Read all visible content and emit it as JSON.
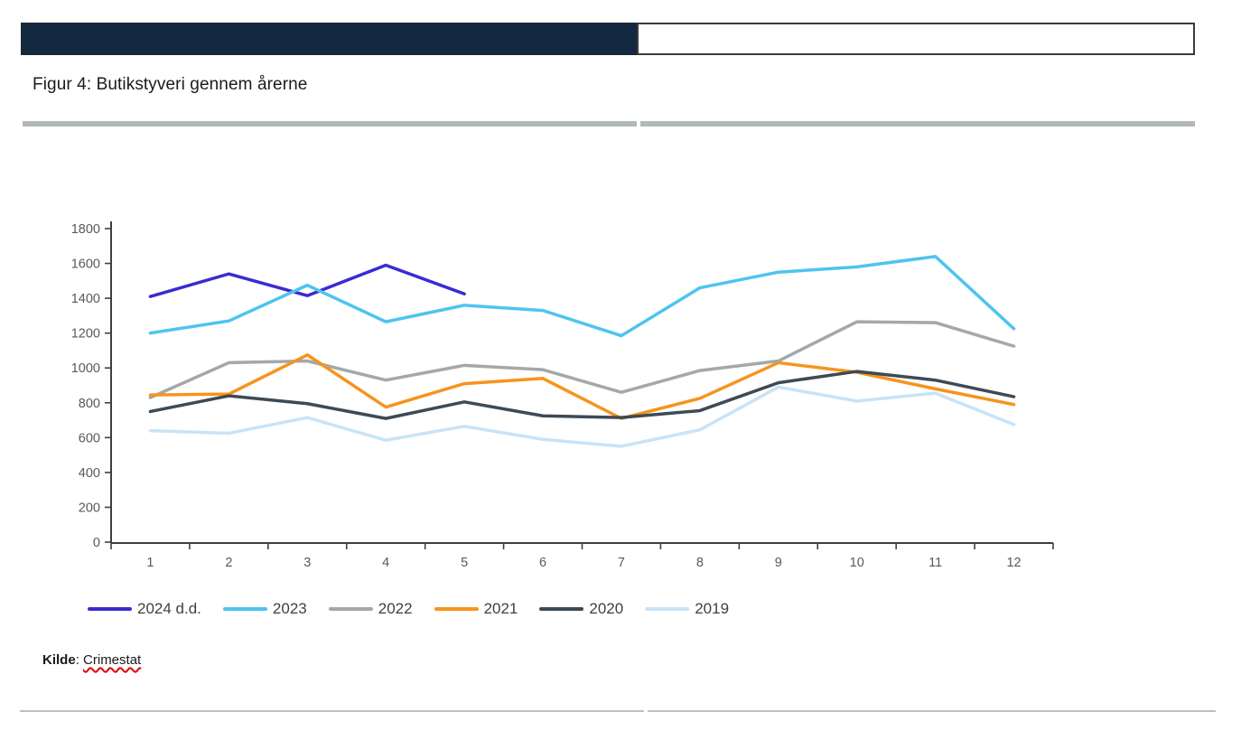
{
  "header": {
    "dark_cell_text": "",
    "light_cell_text": ""
  },
  "figure": {
    "title": "Figur 4: Butikstyveri gennem årerne"
  },
  "source": {
    "label": "Kilde",
    "separator": ": ",
    "value": "Crimestat"
  },
  "chart_data": {
    "type": "line",
    "title": "",
    "xlabel": "",
    "ylabel": "",
    "categories": [
      "1",
      "2",
      "3",
      "4",
      "5",
      "6",
      "7",
      "8",
      "9",
      "10",
      "11",
      "12"
    ],
    "ylim": [
      0,
      1800
    ],
    "ytick_step": 200,
    "grid": false,
    "legend_position": "bottom",
    "axis_color": "#3f3f3f",
    "tick_label_color": "#595959",
    "series": [
      {
        "name": "2024 d.d.",
        "color": "#3a2bd2",
        "values": [
          1410,
          1540,
          1415,
          1590,
          1425
        ]
      },
      {
        "name": "2023",
        "color": "#4ec4ef",
        "values": [
          1200,
          1270,
          1475,
          1265,
          1360,
          1330,
          1185,
          1460,
          1550,
          1580,
          1640,
          1225
        ]
      },
      {
        "name": "2022",
        "color": "#a3a8ab",
        "values": [
          830,
          1030,
          1040,
          930,
          1015,
          990,
          860,
          985,
          1040,
          1265,
          1260,
          1125
        ]
      },
      {
        "name": "2021",
        "color": "#f6941d",
        "values": [
          845,
          850,
          1075,
          775,
          910,
          940,
          710,
          825,
          1030,
          975,
          880,
          790
        ]
      },
      {
        "name": "2020",
        "color": "#3e4a54",
        "values": [
          750,
          840,
          795,
          710,
          805,
          725,
          715,
          755,
          915,
          980,
          930,
          835
        ]
      },
      {
        "name": "2019",
        "color": "#c9e3f6",
        "values": [
          640,
          625,
          715,
          585,
          665,
          590,
          550,
          645,
          890,
          810,
          855,
          675
        ]
      }
    ]
  }
}
